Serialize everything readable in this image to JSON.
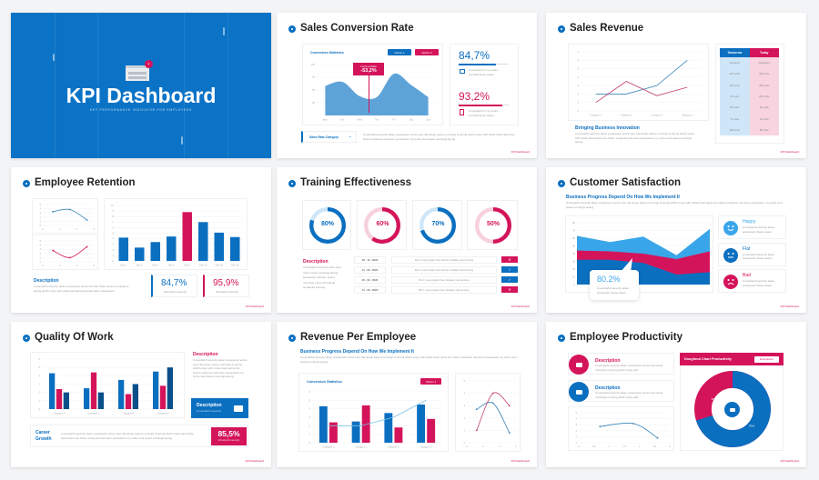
{
  "cover": {
    "title": "KPI Dashboard",
    "subtitle": "KEY PERFORMANCE INDICATOR FOR EMPLOYEES"
  },
  "footer": "KPI Dashboard",
  "lorem_short": "A wonderful of my entire soul like these sweet",
  "lorem_long": "A wonderful serenity taken possession entire soul, like these sweet mornings of spring which enjoy with whole heart alone the charm existence has been possession my entire soul sweet mornings spring",
  "lorem_mid": "A wonderful serenity taken possession entire soul like these sweet mornings of spring which enjoy with whole wonderful serenity taken possession",
  "conversion": {
    "title": "Sales Conversion Rate",
    "chart_title": "Conversion Statistics",
    "option1": "Option 1",
    "option2": "Option 2",
    "tooltip_label": "Current Data",
    "tooltip_value": "-53,2%",
    "stat1": "84,7%",
    "stat2": "93,2%",
    "dropdown": "Sales Rate Category"
  },
  "revenue": {
    "title": "Sales Revenue",
    "heading": "Bringing Business Innovation",
    "table": {
      "headers": [
        "Tomorrow",
        "Today"
      ],
      "rows": [
        [
          "Products",
          "Acquisition"
        ],
        [
          "225 units",
          "325 units"
        ],
        [
          "115 units",
          "445 units"
        ],
        [
          "25 units",
          "225 units"
        ],
        [
          "95 units",
          "96 units"
        ],
        [
          "74 units",
          "35 units"
        ],
        [
          "156 units",
          "85 units"
        ]
      ]
    }
  },
  "retention": {
    "title": "Employee Retention",
    "desc_heading": "Description",
    "stat1": "84,7%",
    "stat2": "95,9%",
    "stat_label": "Wonderful serenity"
  },
  "training": {
    "title": "Training Effectiveness",
    "donut_labels": [
      "80%",
      "60%",
      "70%",
      "50%"
    ],
    "desc_heading": "Description",
    "desc": "A wonderful serenity entire soul, these sweet mornings spring possession and the sweet mornings enjoy with whole wonderful serenity",
    "rows": [
      {
        "date": "06 - 10 - 2023",
        "text": "But I must explain how all this mistaken denouncing",
        "status": "fail"
      },
      {
        "date": "11 - 02 - 2023",
        "text": "But I must explain how all this mistaken denouncing",
        "status": "pass"
      },
      {
        "date": "20 - 02 - 2023",
        "text": "But I must explain how mistaken denouncing",
        "status": "pass"
      },
      {
        "date": "11 - 03 - 2023",
        "text": "But I must explain how mistaken denouncing",
        "status": "fail"
      }
    ],
    "icons": {
      "fail": "✕",
      "pass": "✓"
    }
  },
  "customer": {
    "title": "Customer Satisfaction",
    "subtitle": "Business Progress Depend On How We Implement It",
    "callout": "80.2%",
    "callout_text": "A wonderful serenity taken possession these sweet",
    "feelings": [
      {
        "label": "Happy",
        "text": "A wonderful serenity taken possession these sweet",
        "color": "#3aa6ea"
      },
      {
        "label": "Flat",
        "text": "A wonderful serenity taken possession these sweet",
        "color": "#0b6fc0"
      },
      {
        "label": "Bad",
        "text": "A wonderful serenity taken possession these sweet",
        "color": "#d4145a"
      }
    ]
  },
  "quality": {
    "title": "Quality Of Work",
    "desc_heading": "Description",
    "box_heading": "Description",
    "box_text": "A wonderful serenity",
    "career": "Career Growth",
    "stat": "85,5%",
    "stat_label": "Wonderful serenity"
  },
  "rpe": {
    "title": "Revenue Per Employee",
    "subtitle": "Business Progress Depend On How We Implement It",
    "chart_title": "Conversion Statistics",
    "option": "Option 1"
  },
  "productivity": {
    "title": "Employee Productivity",
    "items": [
      {
        "heading": "Description"
      },
      {
        "heading": "Description"
      }
    ],
    "item_text": "A wonderful serenity taken possession entire soul sweet mornings of spring which enjoy with",
    "donut_title": "Doughnut Chart Productivity",
    "donut_button": "Description"
  },
  "chart_data": [
    {
      "type": "area",
      "title": "Conversion Statistics",
      "categories": [
        "Mon",
        "Tue",
        "Wed",
        "Thu",
        "Fri",
        "Sat",
        "Sun"
      ],
      "values": [
        58,
        66,
        38,
        36,
        82,
        60,
        36
      ],
      "ylim": [
        0,
        100
      ],
      "yticks": [
        25,
        50,
        75,
        100
      ],
      "color": "#5ea3d8"
    },
    {
      "type": "line",
      "categories": [
        "Category 1",
        "Category 2",
        "Category 3",
        "Category 4"
      ],
      "ylim": [
        0,
        7
      ],
      "yticks": [
        0,
        1,
        2,
        3,
        4,
        5,
        6,
        7
      ],
      "series": [
        {
          "name": "Series 1",
          "values": [
            2,
            2,
            3,
            6
          ],
          "color": "#3b86b8"
        },
        {
          "name": "Series 2",
          "values": [
            1,
            3.5,
            1.8,
            2.8
          ],
          "color": "#c2406e"
        }
      ]
    },
    {
      "type": "line",
      "x": [
        0.6,
        1.6,
        2.6
      ],
      "xlim": [
        0,
        3
      ],
      "xticks": [
        0,
        1,
        2,
        3
      ],
      "ylim": [
        0,
        5
      ],
      "yticks": [
        0,
        1,
        2,
        3,
        4,
        5
      ],
      "curve": "smooth",
      "markers": true,
      "series": [
        {
          "name": "Series 1",
          "values": [
            3.3,
            3.8,
            1.3
          ],
          "color": "#3b86b8"
        }
      ]
    },
    {
      "type": "line",
      "x": [
        0.6,
        1.6,
        2.6
      ],
      "xlim": [
        0,
        3
      ],
      "xticks": [
        0,
        1,
        2,
        3
      ],
      "ylim": [
        0,
        5
      ],
      "yticks": [
        0,
        1,
        2,
        3,
        4,
        5
      ],
      "curve": "smooth",
      "markers": true,
      "series": [
        {
          "name": "Series 2",
          "values": [
            2.7,
            1,
            3.6
          ],
          "color": "#d4145a"
        }
      ]
    },
    {
      "type": "bar",
      "categories": [
        "Day 1",
        "Day 2",
        "Day 3",
        "Day 4",
        "Day 5",
        "Day 10",
        "Day 20",
        "Day 30"
      ],
      "ylim": [
        0,
        10
      ],
      "yticks": [
        0,
        1,
        2,
        3,
        4,
        5,
        6,
        7,
        8,
        9,
        10
      ],
      "highlight": 4,
      "highlight_color": "#d4145a",
      "series": [
        {
          "name": "Retention",
          "values": [
            4.2,
            2.4,
            3.4,
            4.4,
            8.8,
            7,
            5.1,
            4.3
          ],
          "color": "#0b6fc0"
        }
      ]
    },
    {
      "type": "donut",
      "value": 80,
      "color": "#0b6fc0",
      "track": "#cfe6f8"
    },
    {
      "type": "donut",
      "value": 60,
      "color": "#d4145a",
      "track": "#f7d0de"
    },
    {
      "type": "donut",
      "value": 70,
      "color": "#0b6fc0",
      "track": "#cfe6f8"
    },
    {
      "type": "donut",
      "value": 50,
      "color": "#d4145a",
      "track": "#f7d0de"
    },
    {
      "type": "stacked",
      "categories": [
        "1",
        "2",
        "3",
        "4",
        "5"
      ],
      "ylim": [
        0,
        80
      ],
      "yticks": [
        0,
        10,
        20,
        30,
        40,
        50,
        60,
        70,
        80
      ],
      "layers": [
        {
          "name": "Happy",
          "values": [
            63,
            55,
            62,
            38,
            72
          ],
          "color": "#3aa6ea"
        },
        {
          "name": "Bad",
          "values": [
            44,
            43,
            40,
            33,
            43
          ],
          "color": "#d4145a"
        },
        {
          "name": "Flat",
          "values": [
            32,
            32,
            28,
            13,
            16
          ],
          "color": "#0b6fc0"
        }
      ]
    },
    {
      "type": "bar",
      "categories": [
        "Category 1",
        "Category 2",
        "Category 3",
        "Category 4"
      ],
      "ylim": [
        0,
        6
      ],
      "yticks": [
        0,
        1,
        2,
        3,
        4,
        5,
        6
      ],
      "series": [
        {
          "name": "Series 1",
          "values": [
            4.3,
            2.5,
            3.5,
            4.5
          ],
          "color": "#0b6fc0"
        },
        {
          "name": "Series 2",
          "values": [
            2.4,
            4.4,
            1.8,
            2.8
          ],
          "color": "#d4145a"
        },
        {
          "name": "Series 3",
          "values": [
            2,
            2,
            3,
            5
          ],
          "color": "#0a4f8a"
        }
      ]
    },
    {
      "type": "bar",
      "categories": [
        "Category 1",
        "Category 2",
        "Category 3",
        "Category 4"
      ],
      "ylim": [
        0,
        6
      ],
      "yticks": [
        0,
        1,
        2,
        3,
        4,
        5,
        6
      ],
      "series": [
        {
          "name": "Series 1",
          "values": [
            4.3,
            2.5,
            3.5,
            4.5
          ],
          "color": "#0b6fc0"
        },
        {
          "name": "Series 2",
          "values": [
            2.4,
            4.4,
            1.8,
            2.8
          ],
          "color": "#d4145a"
        }
      ],
      "line": {
        "name": "Series 3",
        "values": [
          2,
          2,
          3,
          5
        ],
        "color": "#7cc0e8"
      }
    },
    {
      "type": "line",
      "x": [
        0.6,
        1.6,
        2.6
      ],
      "xlim": [
        0,
        3
      ],
      "xticks": [
        0,
        1,
        2,
        3
      ],
      "ylim": [
        0,
        5
      ],
      "yticks": [
        0,
        1,
        2,
        3,
        4,
        5
      ],
      "curve": "smooth",
      "markers": true,
      "series": [
        {
          "name": "Series 1",
          "values": [
            2.7,
            3.2,
            0.8
          ],
          "color": "#3b86b8"
        },
        {
          "name": "Series 2",
          "values": [
            1,
            4,
            3
          ],
          "color": "#c2406e"
        }
      ]
    },
    {
      "type": "line",
      "x": [
        0.7,
        1.8,
        2.6
      ],
      "xlim": [
        0,
        3
      ],
      "xticks": [
        0,
        0.5,
        1,
        1.5,
        2,
        2.5,
        3
      ],
      "ylim": [
        0,
        5
      ],
      "yticks": [
        0,
        1,
        2,
        3,
        4,
        5
      ],
      "curve": "smooth",
      "markers": true,
      "series": [
        {
          "name": "Series 1",
          "values": [
            2.7,
            3.2,
            0.8
          ],
          "color": "#3b86b8"
        }
      ]
    },
    {
      "type": "donut",
      "title": "Doughnut Chart Productivity",
      "value": 70,
      "color": "#0b6fc0",
      "track": "#d4145a",
      "labels": [
        "30%",
        "70%"
      ],
      "thick": true
    }
  ]
}
